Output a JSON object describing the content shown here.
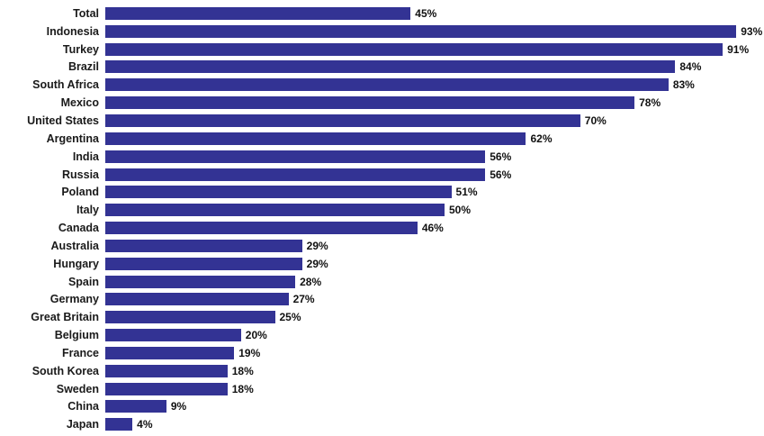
{
  "chart_data": {
    "type": "bar",
    "orientation": "horizontal",
    "title": "",
    "xlabel": "",
    "ylabel": "",
    "value_suffix": "%",
    "xlim": [
      0,
      100
    ],
    "grid": false,
    "legend": false,
    "bar_color": "#333394",
    "label_color": "#1a1a1a",
    "categories": [
      "Total",
      "Indonesia",
      "Turkey",
      "Brazil",
      "South Africa",
      "Mexico",
      "United States",
      "Argentina",
      "India",
      "Russia",
      "Poland",
      "Italy",
      "Canada",
      "Australia",
      "Hungary",
      "Spain",
      "Germany",
      "Great Britain",
      "Belgium",
      "France",
      "South Korea",
      "Sweden",
      "China",
      "Japan"
    ],
    "values": [
      45,
      93,
      91,
      84,
      83,
      78,
      70,
      62,
      56,
      56,
      51,
      50,
      46,
      29,
      29,
      28,
      27,
      25,
      20,
      19,
      18,
      18,
      9,
      4
    ],
    "data_labels": [
      "45%",
      "93%",
      "91%",
      "84%",
      "83%",
      "78%",
      "70%",
      "62%",
      "56%",
      "56%",
      "51%",
      "50%",
      "46%",
      "29%",
      "29%",
      "28%",
      "27%",
      "25%",
      "20%",
      "19%",
      "18%",
      "18%",
      "9%",
      "4%"
    ]
  }
}
